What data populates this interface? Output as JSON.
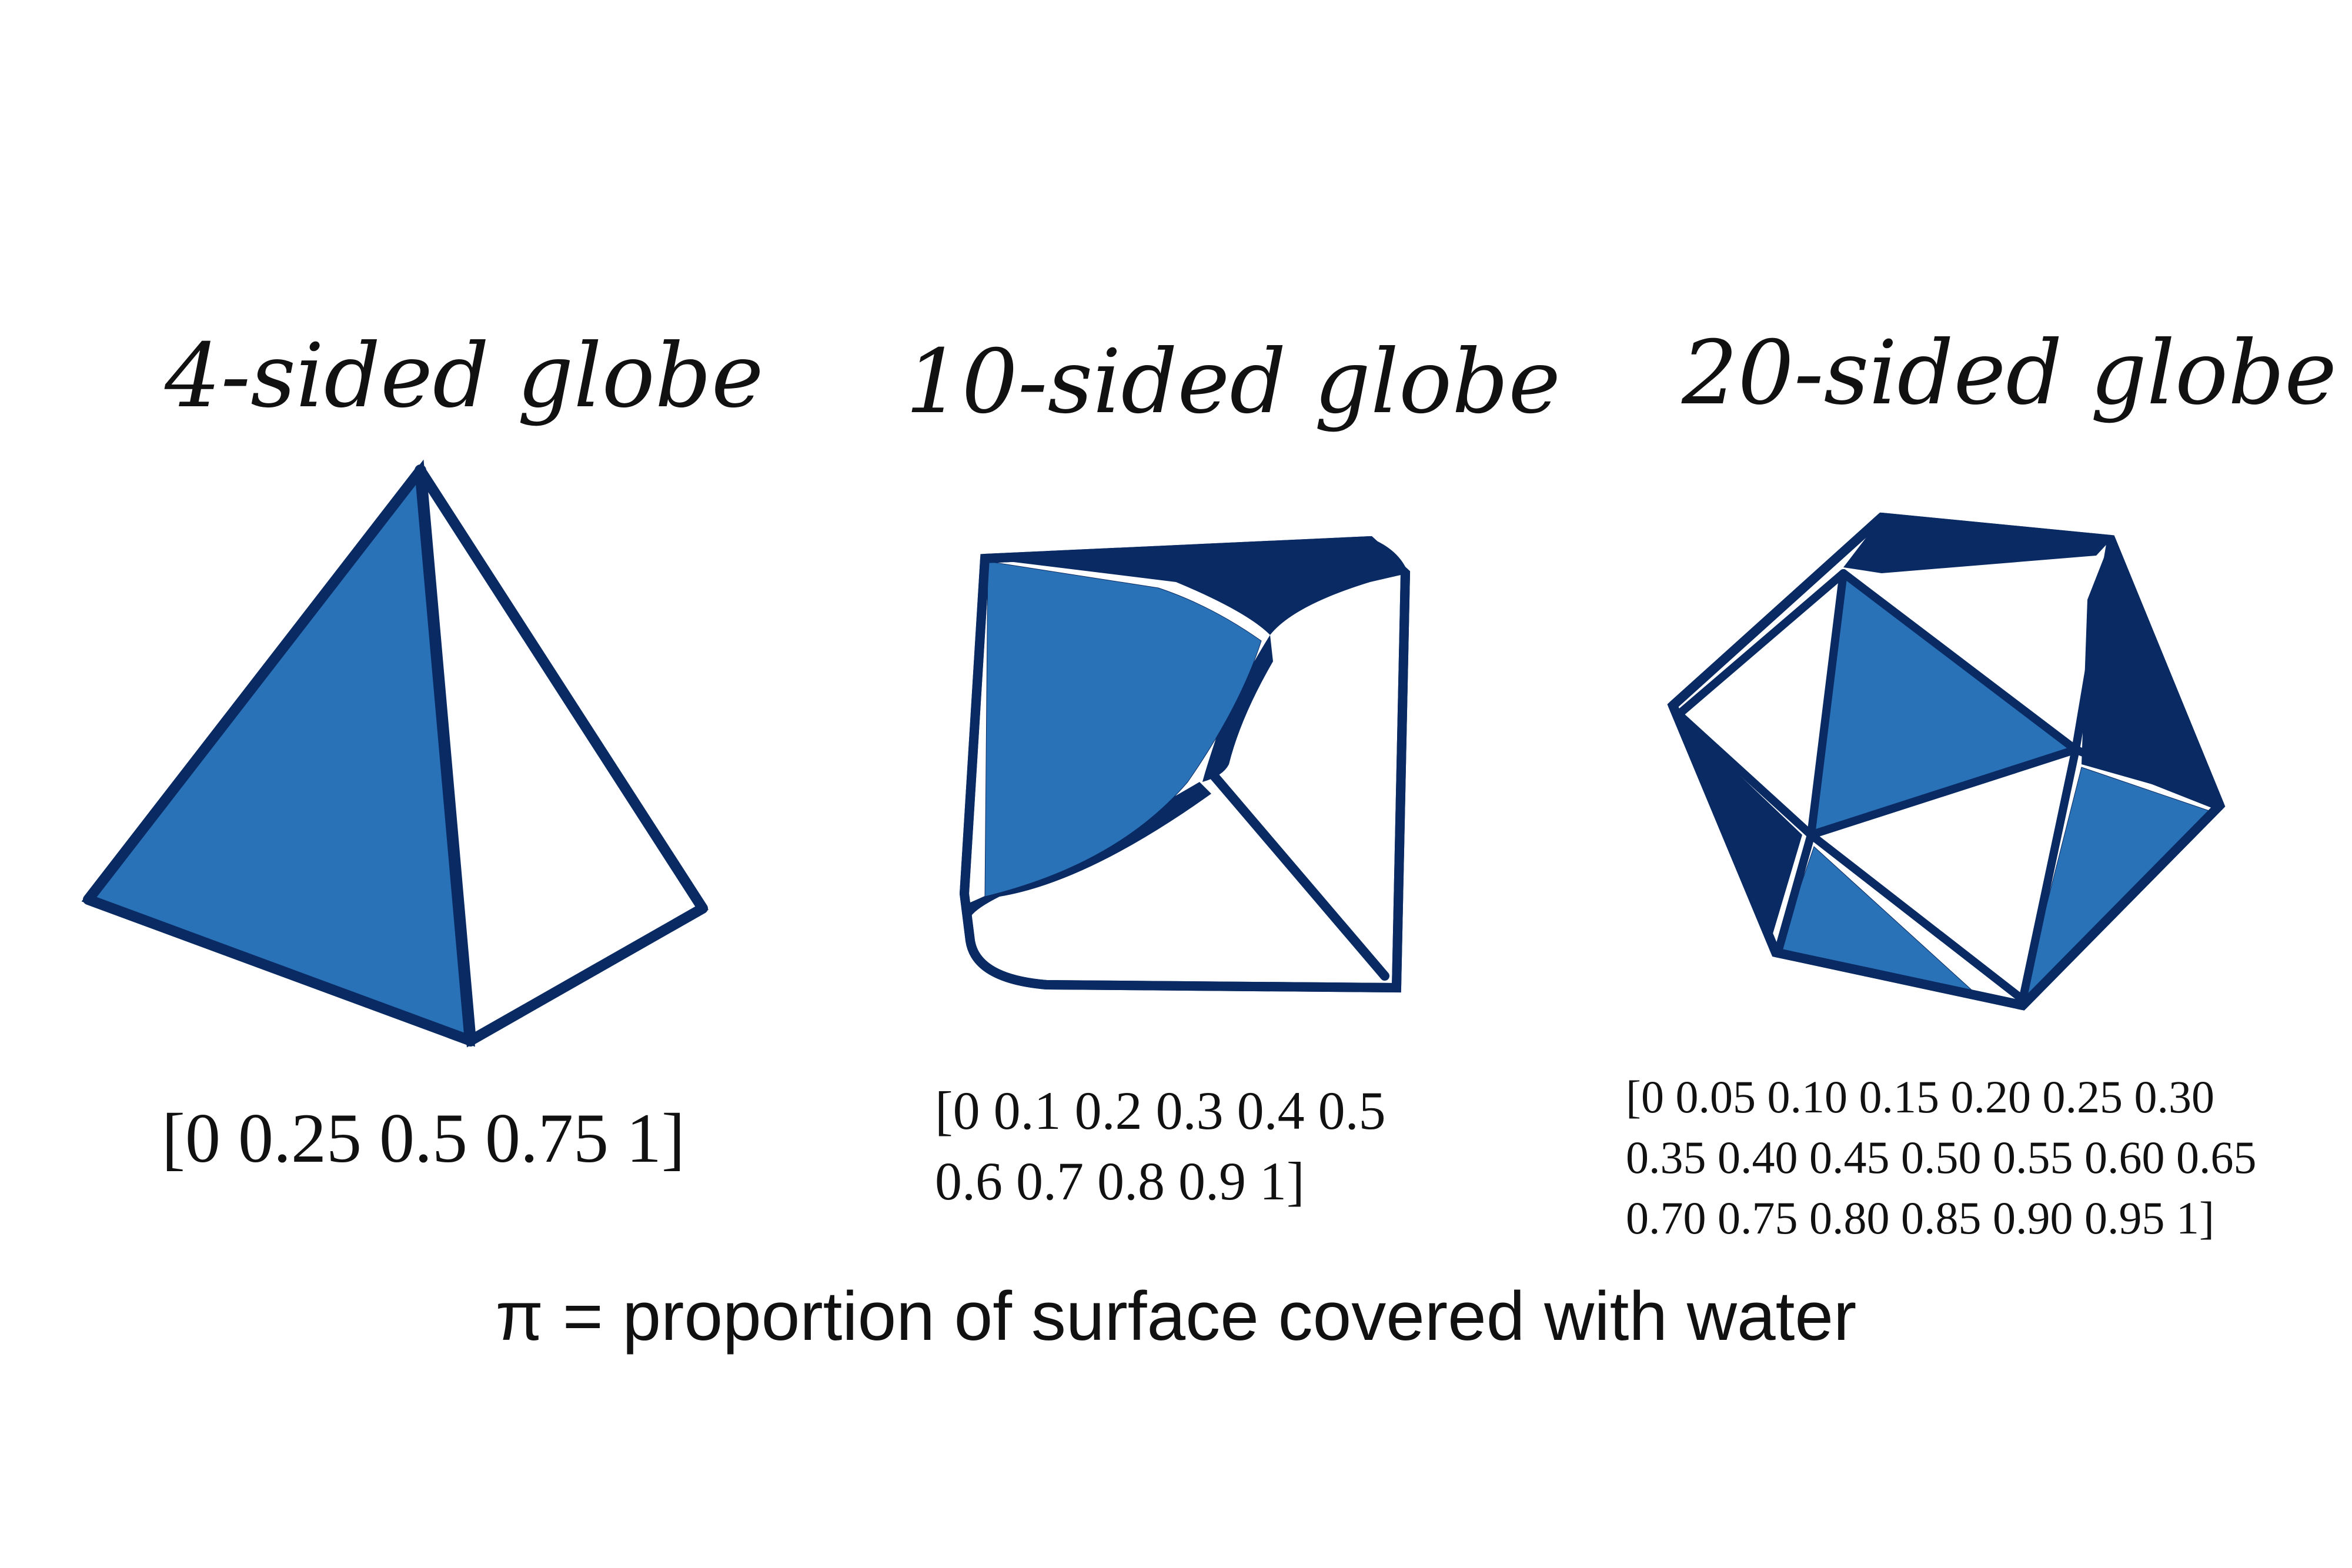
{
  "colors": {
    "water": "#2a72b8",
    "land": "#ffffff",
    "outline": "#0a2a63",
    "text": "#111111"
  },
  "globes": [
    {
      "title": "4-sided globe",
      "values_lines": [
        "[0 0.25 0.5 0.75 1]"
      ]
    },
    {
      "title": "10-sided globe",
      "values_lines": [
        "[0 0.1 0.2 0.3 0.4 0.5",
        "0.6 0.7 0.8 0.9 1]"
      ]
    },
    {
      "title": "20-sided globe",
      "values_lines": [
        "[0 0.05 0.10 0.15 0.20 0.25 0.30",
        "0.35 0.40 0.45 0.50 0.55 0.60 0.65",
        "0.70 0.75 0.80 0.85 0.90 0.95 1]"
      ]
    }
  ],
  "caption": "π = proportion of surface covered with water"
}
